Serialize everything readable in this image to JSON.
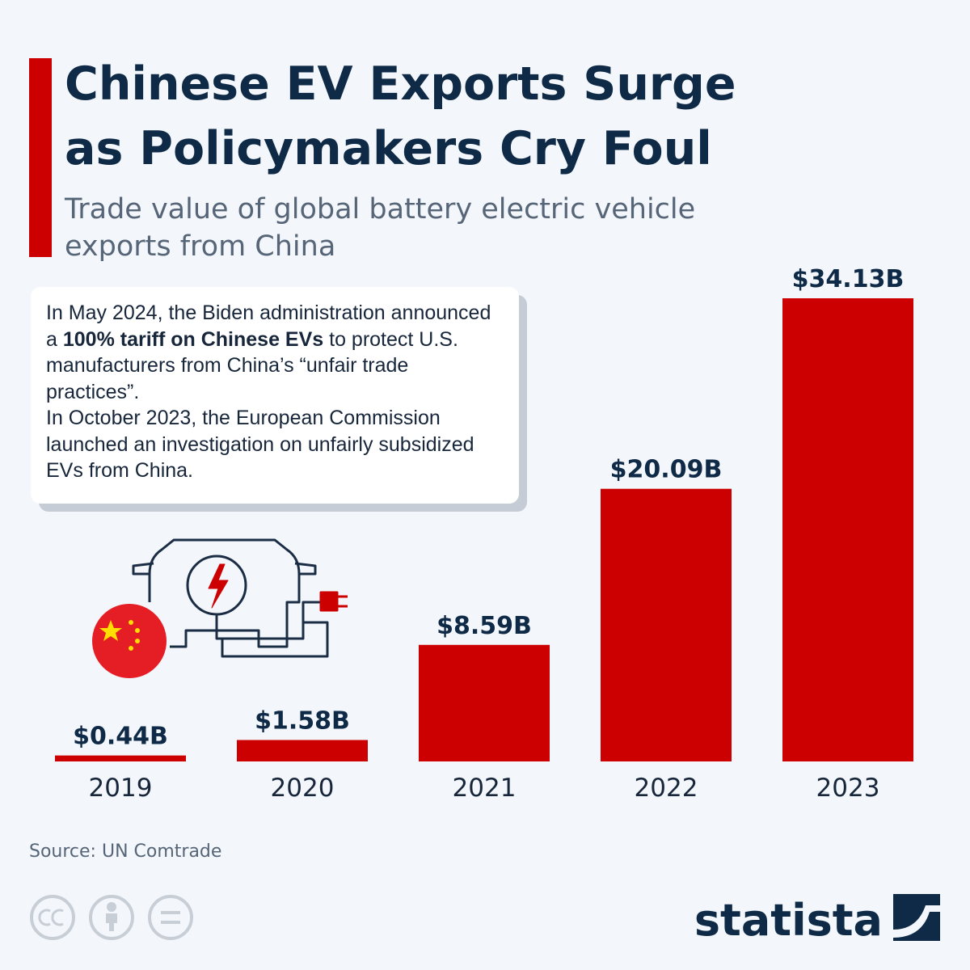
{
  "chart_data": {
    "type": "bar",
    "title": [
      "Chinese EV Exports Surge",
      "as Policymakers Cry Foul"
    ],
    "subtitle": [
      "Trade value of global battery electric vehicle",
      "exports from China"
    ],
    "annotation": [
      "In May 2024, the Biden administration announced a ",
      "100% tariff on Chinese EVs",
      " to protect U.S. manufacturers from China’s “unfair trade practices”.",
      "In October 2023, the European Commission launched an investigation on unfairly subsidized EVs from China."
    ],
    "categories": [
      "2019",
      "2020",
      "2021",
      "2022",
      "2023"
    ],
    "values": [
      0.44,
      1.58,
      8.59,
      20.09,
      34.13
    ],
    "value_labels": [
      "$0.44B",
      "$1.58B",
      "$8.59B",
      "$20.09B",
      "$34.13B"
    ],
    "color": "#cc0000",
    "source": "Source: UN Comtrade",
    "brand": "statista"
  }
}
